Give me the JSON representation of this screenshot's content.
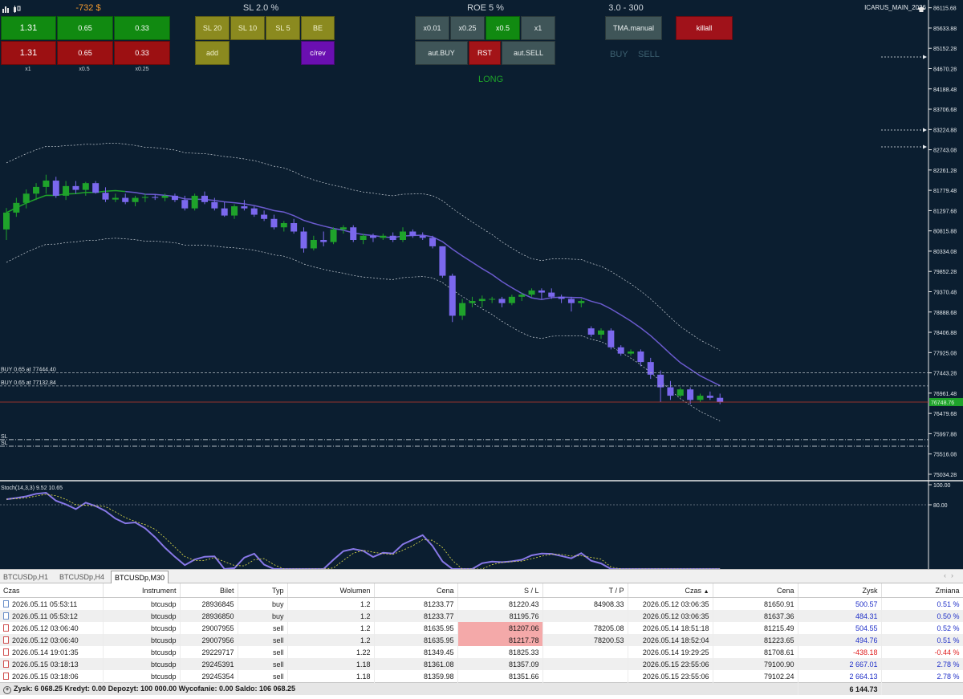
{
  "top_icons": [
    "bar-chart-icon",
    "candle-chart-icon"
  ],
  "account_label": "ICARUS_MAIN_2026",
  "panel": {
    "pnl": "-732 $",
    "sl_title": "SL 2.0 %",
    "roe_title": "ROE 5 %",
    "range_title": "3.0 - 300",
    "green_buttons": [
      "1.31",
      "0.65",
      "0.33"
    ],
    "red_buttons": [
      "1.31",
      "0.65",
      "0.33"
    ],
    "size_labels": [
      "x1",
      "x0.5",
      "x0.25"
    ],
    "sl_buttons": [
      "SL 20",
      "SL 10",
      "SL 5",
      "BE"
    ],
    "add_label": "add",
    "crev_label": "c/rev",
    "mult_buttons": [
      "x0.01",
      "x0.25",
      "x0.5",
      "x1"
    ],
    "aut_buy": "aut.BUY",
    "rst": "RST",
    "aut_sell": "aut.SELL",
    "tma_manual": "TMA.manual",
    "killall": "killall",
    "buy_text": "BUY",
    "sell_text": "SELL",
    "long_text": "LONG"
  },
  "chart": {
    "price_ticks": [
      "86115.68",
      "85633.88",
      "85152.28",
      "84670.28",
      "84188.48",
      "83706.68",
      "83224.88",
      "82743.08",
      "82261.28",
      "81779.48",
      "81297.68",
      "80815.88",
      "80334.08",
      "79852.28",
      "79370.48",
      "78888.68",
      "78406.88",
      "77925.08",
      "77443.28",
      "76961.48",
      "76479.68",
      "75997.88",
      "75516.08",
      "75034.28"
    ],
    "current_price": "76748.76",
    "order_lines": [
      {
        "label": "BUY 0.65 at 77444.40",
        "price": 77444.4
      },
      {
        "label": "BUY 0.65 at 77132.84",
        "price": 77132.84
      }
    ],
    "sl_lines": [
      {
        "label": "SL",
        "price": 75855
      },
      {
        "label": "SL",
        "price": 75700
      }
    ],
    "stoch_label": "Stoch(14,3,3) 9.52 10.65",
    "stoch_ticks": [
      "100.00",
      "80.00"
    ],
    "colors": {
      "bull": "#1fa32b",
      "bear": "#7b68ee",
      "bg": "#0b1e30",
      "ma": "#6a5acd"
    }
  },
  "chart_data": {
    "type": "candlestick",
    "y_range": [
      74900,
      86300
    ],
    "candles": [
      [
        80850,
        81360,
        80600,
        81250
      ],
      [
        81250,
        81600,
        81150,
        81480
      ],
      [
        81480,
        81800,
        81350,
        81700
      ],
      [
        81700,
        81950,
        81550,
        81860
      ],
      [
        81860,
        82150,
        81700,
        82010
      ],
      [
        82010,
        82100,
        81600,
        81650
      ],
      [
        81650,
        82000,
        81550,
        81880
      ],
      [
        81880,
        82000,
        81700,
        81790
      ],
      [
        81790,
        81980,
        81650,
        81950
      ],
      [
        81950,
        82000,
        81700,
        81720
      ],
      [
        81720,
        81850,
        81500,
        81560
      ],
      [
        81560,
        81700,
        81500,
        81600
      ],
      [
        81600,
        81700,
        81450,
        81500
      ],
      [
        81500,
        81650,
        81400,
        81600
      ],
      [
        81600,
        81700,
        81500,
        81620
      ],
      [
        81620,
        81680,
        81550,
        81600
      ],
      [
        81600,
        81700,
        81520,
        81650
      ],
      [
        81650,
        81700,
        81500,
        81550
      ],
      [
        81550,
        81650,
        81300,
        81350
      ],
      [
        81350,
        81700,
        81300,
        81650
      ],
      [
        81650,
        81750,
        81450,
        81500
      ],
      [
        81500,
        81600,
        81300,
        81350
      ],
      [
        81350,
        81500,
        81150,
        81180
      ],
      [
        81180,
        81450,
        81100,
        81400
      ],
      [
        81400,
        81550,
        81300,
        81350
      ],
      [
        81350,
        81400,
        81150,
        81200
      ],
      [
        81200,
        81300,
        81050,
        81100
      ],
      [
        81100,
        81200,
        80850,
        80900
      ],
      [
        80900,
        81050,
        80800,
        81000
      ],
      [
        81000,
        81100,
        80750,
        80800
      ],
      [
        80800,
        80900,
        80300,
        80400
      ],
      [
        80400,
        80700,
        80350,
        80600
      ],
      [
        80600,
        80800,
        80450,
        80550
      ],
      [
        80550,
        80900,
        80500,
        80850
      ],
      [
        80850,
        80950,
        80750,
        80900
      ],
      [
        80900,
        80950,
        80550,
        80600
      ],
      [
        80600,
        80750,
        80500,
        80700
      ],
      [
        80700,
        80750,
        80550,
        80650
      ],
      [
        80650,
        80750,
        80600,
        80700
      ],
      [
        80700,
        80780,
        80550,
        80600
      ],
      [
        80600,
        80900,
        80550,
        80800
      ],
      [
        80800,
        80850,
        80650,
        80700
      ],
      [
        80700,
        80780,
        80600,
        80650
      ],
      [
        80650,
        80700,
        80400,
        80450
      ],
      [
        80450,
        80450,
        79700,
        79750
      ],
      [
        79750,
        79800,
        78650,
        78800
      ],
      [
        78800,
        79200,
        78700,
        79100
      ],
      [
        79100,
        79250,
        79000,
        79150
      ],
      [
        79150,
        79280,
        79000,
        79200
      ],
      [
        79200,
        79250,
        79100,
        79200
      ],
      [
        79200,
        79250,
        79000,
        79100
      ],
      [
        79100,
        79300,
        79050,
        79250
      ],
      [
        79250,
        79350,
        79150,
        79300
      ],
      [
        79300,
        79450,
        79250,
        79400
      ],
      [
        79400,
        79450,
        79200,
        79350
      ],
      [
        79350,
        79450,
        79200,
        79250
      ],
      [
        79250,
        79300,
        79100,
        79200
      ],
      [
        79200,
        79250,
        78900,
        79100
      ],
      [
        79100,
        79200,
        79000,
        79150
      ],
      [
        78500,
        78550,
        78300,
        78350
      ],
      [
        78350,
        78500,
        78250,
        78450
      ],
      [
        78450,
        78500,
        78000,
        78050
      ],
      [
        78050,
        78100,
        77850,
        77900
      ],
      [
        77900,
        78000,
        77850,
        77950
      ],
      [
        77950,
        78000,
        77600,
        77700
      ],
      [
        77700,
        77800,
        77300,
        77400
      ],
      [
        77400,
        77500,
        76750,
        77100
      ],
      [
        77100,
        77250,
        76800,
        76900
      ],
      [
        76900,
        77100,
        76850,
        77050
      ],
      [
        77050,
        77100,
        76700,
        76800
      ],
      [
        76800,
        76950,
        76750,
        76900
      ],
      [
        76900,
        77000,
        76800,
        76850
      ],
      [
        76850,
        76950,
        76700,
        76750
      ]
    ],
    "stoch_range": [
      0,
      100
    ]
  },
  "tabs": [
    "BTCUSDp,H1",
    "BTCUSDp,H4",
    "BTCUSDp,M30"
  ],
  "table": {
    "headers": [
      "Czas",
      "Instrument",
      "Bilet",
      "Typ",
      "Wolumen",
      "Cena",
      "S / L",
      "T / P",
      "Czas",
      "Cena",
      "Zysk",
      "Zmiana"
    ],
    "rows": [
      {
        "time": "2026.05.11 05:53:11",
        "instrument": "btcusdp",
        "ticket": "28936845",
        "type": "buy",
        "volume": "1.2",
        "price": "81233.77",
        "sl": "81220.43",
        "tp": "84908.33",
        "time2": "2026.05.12 03:06:35",
        "price2": "81650.91",
        "profit": "500.57",
        "change": "0.51 %",
        "icon": "buy",
        "sl_hl": false
      },
      {
        "time": "2026.05.11 05:53:12",
        "instrument": "btcusdp",
        "ticket": "28936850",
        "type": "buy",
        "volume": "1.2",
        "price": "81233.77",
        "sl": "81195.76",
        "tp": "",
        "time2": "2026.05.12 03:06:35",
        "price2": "81637.36",
        "profit": "484.31",
        "change": "0.50 %",
        "icon": "buy",
        "sl_hl": false
      },
      {
        "time": "2026.05.12 03:06:40",
        "instrument": "btcusdp",
        "ticket": "29007955",
        "type": "sell",
        "volume": "1.2",
        "price": "81635.95",
        "sl": "81207.06",
        "tp": "78205.08",
        "time2": "2026.05.14 18:51:18",
        "price2": "81215.49",
        "profit": "504.55",
        "change": "0.52 %",
        "icon": "sell",
        "sl_hl": true
      },
      {
        "time": "2026.05.12 03:06:40",
        "instrument": "btcusdp",
        "ticket": "29007956",
        "type": "sell",
        "volume": "1.2",
        "price": "81635.95",
        "sl": "81217.78",
        "tp": "78200.53",
        "time2": "2026.05.14 18:52:04",
        "price2": "81223.65",
        "profit": "494.76",
        "change": "0.51 %",
        "icon": "sell",
        "sl_hl": true
      },
      {
        "time": "2026.05.14 19:01:35",
        "instrument": "btcusdp",
        "ticket": "29229717",
        "type": "sell",
        "volume": "1.22",
        "price": "81349.45",
        "sl": "81825.33",
        "tp": "",
        "time2": "2026.05.14 19:29:25",
        "price2": "81708.61",
        "profit": "-438.18",
        "change": "-0.44 %",
        "icon": "sell",
        "sl_hl": false
      },
      {
        "time": "2026.05.15 03:18:13",
        "instrument": "btcusdp",
        "ticket": "29245391",
        "type": "sell",
        "volume": "1.18",
        "price": "81361.08",
        "sl": "81357.09",
        "tp": "",
        "time2": "2026.05.15 23:55:06",
        "price2": "79100.90",
        "profit": "2 667.01",
        "change": "2.78 %",
        "icon": "sell",
        "sl_hl": false
      },
      {
        "time": "2026.05.15 03:18:06",
        "instrument": "btcusdp",
        "ticket": "29245354",
        "type": "sell",
        "volume": "1.18",
        "price": "81359.98",
        "sl": "81351.66",
        "tp": "",
        "time2": "2026.05.15 23:55:06",
        "price2": "79102.24",
        "profit": "2 664.13",
        "change": "2.78 %",
        "icon": "sell",
        "sl_hl": false
      }
    ],
    "summary": "Zysk: 6 068.25  Kredyt: 0.00  Depozyt: 100 000.00  Wycofanie: 0.00  Saldo: 106 068.25",
    "summary_total": "6 144.73"
  }
}
